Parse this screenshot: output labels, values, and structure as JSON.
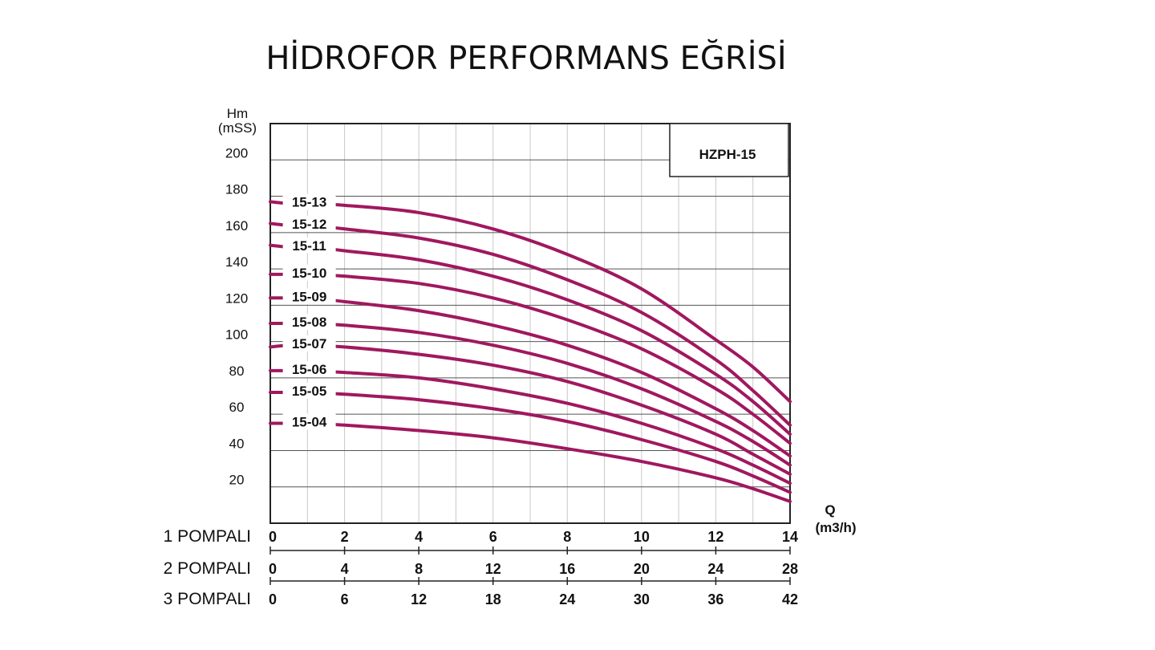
{
  "chart_data": {
    "type": "line",
    "title": "HİDROFOR PERFORMANS EĞRİSİ",
    "legend_box": "HZPH-15",
    "ylabel": "Hm",
    "yunit": "(mSS)",
    "xlabel": "Q",
    "xunit": "(m3/h)",
    "ylim": [
      0,
      220
    ],
    "yticks": [
      20,
      40,
      60,
      80,
      100,
      120,
      140,
      160,
      180,
      200
    ],
    "xlim": [
      0,
      14
    ],
    "xticks": [
      0,
      2,
      4,
      6,
      8,
      10,
      12,
      14
    ],
    "grid": true,
    "line_color": "#a0185f",
    "x_axes": [
      {
        "label": "1 POMPALI",
        "ticks": [
          "0",
          "2",
          "4",
          "6",
          "8",
          "10",
          "12",
          "14"
        ]
      },
      {
        "label": "2 POMPALI",
        "ticks": [
          "0",
          "4",
          "8",
          "12",
          "16",
          "20",
          "24",
          "28"
        ]
      },
      {
        "label": "3 POMPALI",
        "ticks": [
          "0",
          "6",
          "12",
          "18",
          "24",
          "30",
          "36",
          "42"
        ]
      }
    ],
    "series": [
      {
        "name": "15-13",
        "x": [
          0,
          0.5,
          1,
          2,
          4,
          6,
          8,
          10,
          12,
          13,
          14
        ],
        "y": [
          177,
          176,
          176,
          175,
          171,
          162,
          148,
          129,
          101,
          86,
          67
        ]
      },
      {
        "name": "15-12",
        "x": [
          0,
          0.5,
          1,
          2,
          4,
          6,
          8,
          10,
          12,
          13,
          14
        ],
        "y": [
          165,
          164,
          164,
          162,
          157,
          148,
          134,
          116,
          90,
          73,
          54
        ]
      },
      {
        "name": "15-11",
        "x": [
          0,
          0.5,
          1,
          2,
          4,
          6,
          8,
          10,
          12,
          13,
          14
        ],
        "y": [
          153,
          152,
          152,
          150,
          145,
          136,
          123,
          106,
          82,
          67,
          49
        ]
      },
      {
        "name": "15-10",
        "x": [
          0,
          0.5,
          1,
          2,
          4,
          6,
          8,
          10,
          12,
          13,
          14
        ],
        "y": [
          137,
          137,
          137,
          136,
          132,
          124,
          112,
          96,
          74,
          60,
          44
        ]
      },
      {
        "name": "15-09",
        "x": [
          0,
          0.5,
          1,
          2,
          4,
          6,
          8,
          10,
          12,
          13,
          14
        ],
        "y": [
          124,
          124,
          124,
          122,
          117,
          109,
          98,
          83,
          63,
          51,
          37
        ]
      },
      {
        "name": "15-08",
        "x": [
          0,
          0.5,
          1,
          2,
          4,
          6,
          8,
          10,
          12,
          13,
          14
        ],
        "y": [
          110,
          110,
          110,
          109,
          105,
          98,
          88,
          74,
          56,
          45,
          32
        ]
      },
      {
        "name": "15-07",
        "x": [
          0,
          0.5,
          1,
          2,
          4,
          6,
          8,
          10,
          12,
          13,
          14
        ],
        "y": [
          97,
          98,
          98,
          97,
          93,
          87,
          78,
          65,
          49,
          38,
          27
        ]
      },
      {
        "name": "15-06",
        "x": [
          0,
          0.5,
          1,
          2,
          4,
          6,
          8,
          10,
          12,
          13,
          14
        ],
        "y": [
          84,
          84,
          84,
          83,
          80,
          74,
          66,
          55,
          41,
          32,
          22
        ]
      },
      {
        "name": "15-05",
        "x": [
          0,
          0.5,
          1,
          2,
          4,
          6,
          8,
          10,
          12,
          13,
          14
        ],
        "y": [
          72,
          72,
          72,
          71,
          68,
          63,
          56,
          46,
          34,
          26,
          17
        ]
      },
      {
        "name": "15-04",
        "x": [
          0,
          0.5,
          1,
          2,
          4,
          6,
          8,
          10,
          12,
          13,
          14
        ],
        "y": [
          55,
          55,
          55,
          54,
          51,
          47,
          41,
          34,
          25,
          19,
          12
        ]
      }
    ]
  }
}
